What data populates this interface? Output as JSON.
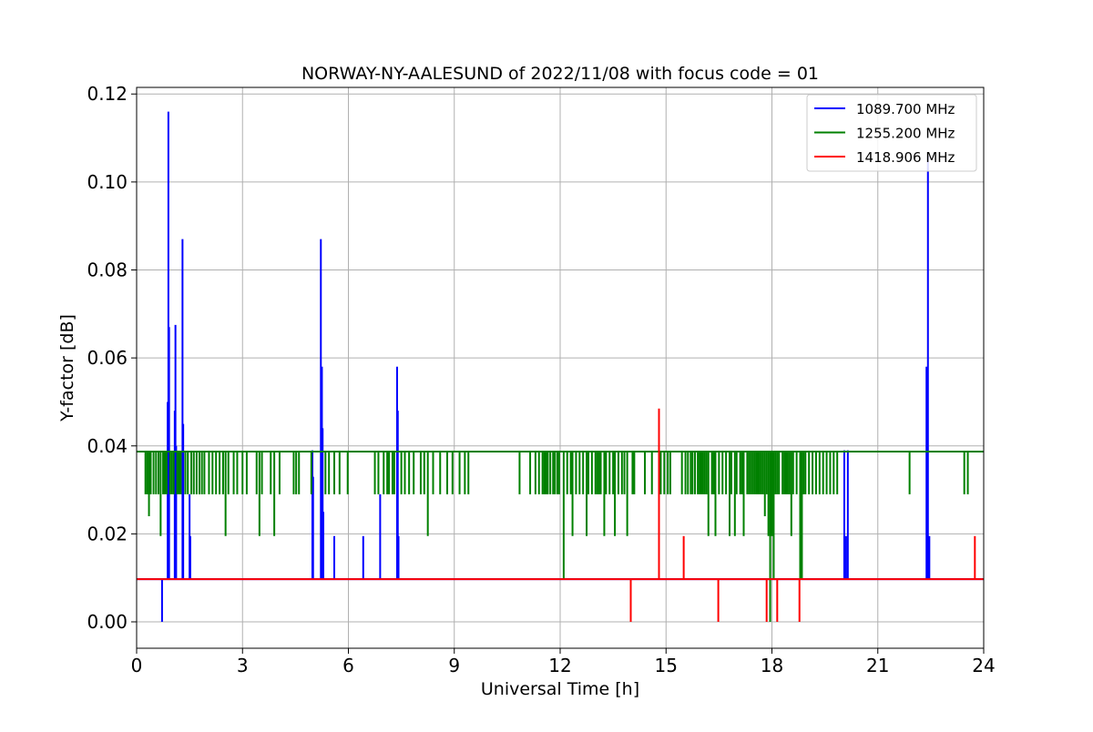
{
  "chart_data": {
    "type": "line",
    "title": "NORWAY-NY-AALESUND of 2022/11/08 with focus code = 01",
    "xlabel": "Universal Time [h]",
    "ylabel": "Y-factor [dB]",
    "xlim": [
      0,
      24
    ],
    "ylim": [
      -0.006,
      0.1215
    ],
    "x_ticks": [
      0,
      3,
      6,
      9,
      12,
      15,
      18,
      21,
      24
    ],
    "x_tick_labels": [
      "0",
      "3",
      "6",
      "9",
      "12",
      "15",
      "18",
      "21",
      "24"
    ],
    "y_ticks": [
      0.0,
      0.02,
      0.04,
      0.06,
      0.08,
      0.1,
      0.12
    ],
    "y_tick_labels": [
      "0.00",
      "0.02",
      "0.04",
      "0.06",
      "0.08",
      "0.10",
      "0.12"
    ],
    "grid": true,
    "legend_position": "top-right",
    "series": [
      {
        "name": "1089.700 MHz",
        "color": "#0000ff",
        "baseline": 0.0097,
        "x": [
          0.72,
          0.88,
          0.9,
          0.92,
          1.08,
          1.1,
          1.12,
          1.3,
          1.32,
          1.5,
          1.52,
          4.98,
          5.0,
          5.22,
          5.25,
          5.27,
          5.29,
          5.6,
          6.42,
          6.9,
          7.38,
          7.4,
          7.42,
          20.05,
          20.1,
          20.15,
          22.38,
          22.42,
          22.46
        ],
        "y": [
          0.0,
          0.05,
          0.116,
          0.067,
          0.048,
          0.0675,
          0.04,
          0.087,
          0.045,
          0.029,
          0.0195,
          0.039,
          0.033,
          0.087,
          0.058,
          0.044,
          0.025,
          0.0195,
          0.0195,
          0.029,
          0.058,
          0.048,
          0.0195,
          0.039,
          0.0195,
          0.039,
          0.058,
          0.106,
          0.0195
        ]
      },
      {
        "name": "1255.200 MHz",
        "color": "#008000",
        "baseline": 0.0387,
        "x": [
          0.25,
          0.3,
          0.35,
          0.4,
          0.48,
          0.55,
          0.62,
          0.68,
          0.75,
          0.8,
          0.85,
          0.95,
          1.0,
          1.05,
          1.15,
          1.2,
          1.25,
          1.38,
          1.45,
          1.55,
          1.62,
          1.7,
          1.78,
          1.85,
          1.92,
          2.05,
          2.15,
          2.25,
          2.35,
          2.45,
          2.52,
          2.6,
          2.75,
          2.85,
          3.0,
          3.12,
          3.4,
          3.48,
          3.55,
          3.8,
          3.9,
          4.05,
          4.45,
          4.52,
          4.6,
          4.95,
          5.35,
          5.45,
          5.6,
          5.75,
          5.98,
          6.75,
          6.85,
          7.0,
          7.1,
          7.15,
          7.25,
          7.3,
          7.5,
          7.6,
          7.72,
          7.85,
          8.05,
          8.15,
          8.25,
          8.4,
          8.6,
          8.8,
          8.95,
          9.15,
          9.3,
          9.4,
          10.85,
          11.15,
          11.3,
          11.4,
          11.5,
          11.55,
          11.6,
          11.65,
          11.72,
          11.8,
          11.85,
          11.92,
          11.97,
          12.1,
          12.2,
          12.3,
          12.35,
          12.45,
          12.55,
          12.65,
          12.75,
          12.8,
          12.9,
          13.0,
          13.05,
          13.1,
          13.15,
          13.25,
          13.3,
          13.4,
          13.5,
          13.55,
          13.65,
          13.75,
          13.82,
          13.9,
          14.05,
          14.1,
          14.4,
          14.6,
          14.85,
          14.95,
          15.05,
          15.12,
          15.45,
          15.55,
          15.62,
          15.7,
          15.75,
          15.82,
          15.9,
          15.95,
          16.0,
          16.05,
          16.1,
          16.15,
          16.2,
          16.3,
          16.35,
          16.4,
          16.5,
          16.6,
          16.7,
          16.8,
          16.85,
          16.95,
          17.0,
          17.1,
          17.15,
          17.2,
          17.3,
          17.35,
          17.4,
          17.45,
          17.5,
          17.55,
          17.6,
          17.65,
          17.7,
          17.75,
          17.8,
          17.85,
          17.9,
          17.95,
          18.0,
          18.05,
          18.1,
          18.15,
          18.2,
          18.3,
          18.35,
          18.4,
          18.45,
          18.5,
          18.55,
          18.6,
          18.7,
          18.8,
          18.85,
          18.9,
          18.95,
          19.05,
          19.15,
          19.25,
          19.35,
          19.45,
          19.55,
          19.65,
          19.75,
          19.85,
          21.9,
          23.45,
          23.55
        ],
        "y": [
          0.029,
          0.029,
          0.024,
          0.029,
          0.029,
          0.029,
          0.029,
          0.0195,
          0.029,
          0.029,
          0.029,
          0.029,
          0.029,
          0.029,
          0.029,
          0.029,
          0.029,
          0.029,
          0.029,
          0.029,
          0.029,
          0.029,
          0.029,
          0.029,
          0.029,
          0.029,
          0.029,
          0.029,
          0.029,
          0.029,
          0.0195,
          0.029,
          0.029,
          0.029,
          0.029,
          0.029,
          0.029,
          0.0195,
          0.029,
          0.029,
          0.0195,
          0.029,
          0.029,
          0.029,
          0.029,
          0.029,
          0.029,
          0.029,
          0.029,
          0.029,
          0.029,
          0.029,
          0.029,
          0.029,
          0.029,
          0.029,
          0.029,
          0.029,
          0.029,
          0.029,
          0.029,
          0.029,
          0.029,
          0.029,
          0.0195,
          0.029,
          0.029,
          0.029,
          0.029,
          0.029,
          0.029,
          0.029,
          0.029,
          0.029,
          0.029,
          0.029,
          0.029,
          0.029,
          0.029,
          0.029,
          0.029,
          0.029,
          0.029,
          0.029,
          0.029,
          0.0097,
          0.029,
          0.029,
          0.0195,
          0.029,
          0.029,
          0.029,
          0.0195,
          0.029,
          0.029,
          0.029,
          0.029,
          0.029,
          0.029,
          0.0195,
          0.029,
          0.029,
          0.029,
          0.0195,
          0.029,
          0.029,
          0.029,
          0.0195,
          0.029,
          0.029,
          0.029,
          0.029,
          0.029,
          0.029,
          0.029,
          0.029,
          0.029,
          0.029,
          0.029,
          0.029,
          0.029,
          0.029,
          0.029,
          0.029,
          0.029,
          0.029,
          0.029,
          0.029,
          0.0195,
          0.029,
          0.029,
          0.0195,
          0.029,
          0.029,
          0.029,
          0.0195,
          0.029,
          0.0195,
          0.029,
          0.029,
          0.029,
          0.0195,
          0.029,
          0.029,
          0.029,
          0.029,
          0.029,
          0.029,
          0.029,
          0.029,
          0.029,
          0.029,
          0.024,
          0.029,
          0.0195,
          0.0,
          0.0195,
          0.0097,
          0.029,
          0.029,
          0.029,
          0.029,
          0.029,
          0.029,
          0.029,
          0.029,
          0.0195,
          0.029,
          0.029,
          0.0097,
          0.0097,
          0.029,
          0.029,
          0.029,
          0.029,
          0.029,
          0.029,
          0.029,
          0.029,
          0.029,
          0.029,
          0.029,
          0.029,
          0.029,
          0.029
        ]
      },
      {
        "name": "1418.906 MHz",
        "color": "#ff0000",
        "baseline": 0.0097,
        "x": [
          14.0,
          14.8,
          15.5,
          16.48,
          17.85,
          18.15,
          18.78,
          23.75
        ],
        "y": [
          0.0,
          0.0485,
          0.0195,
          0.0,
          0.0,
          0.0,
          0.0,
          0.0195
        ]
      }
    ]
  }
}
